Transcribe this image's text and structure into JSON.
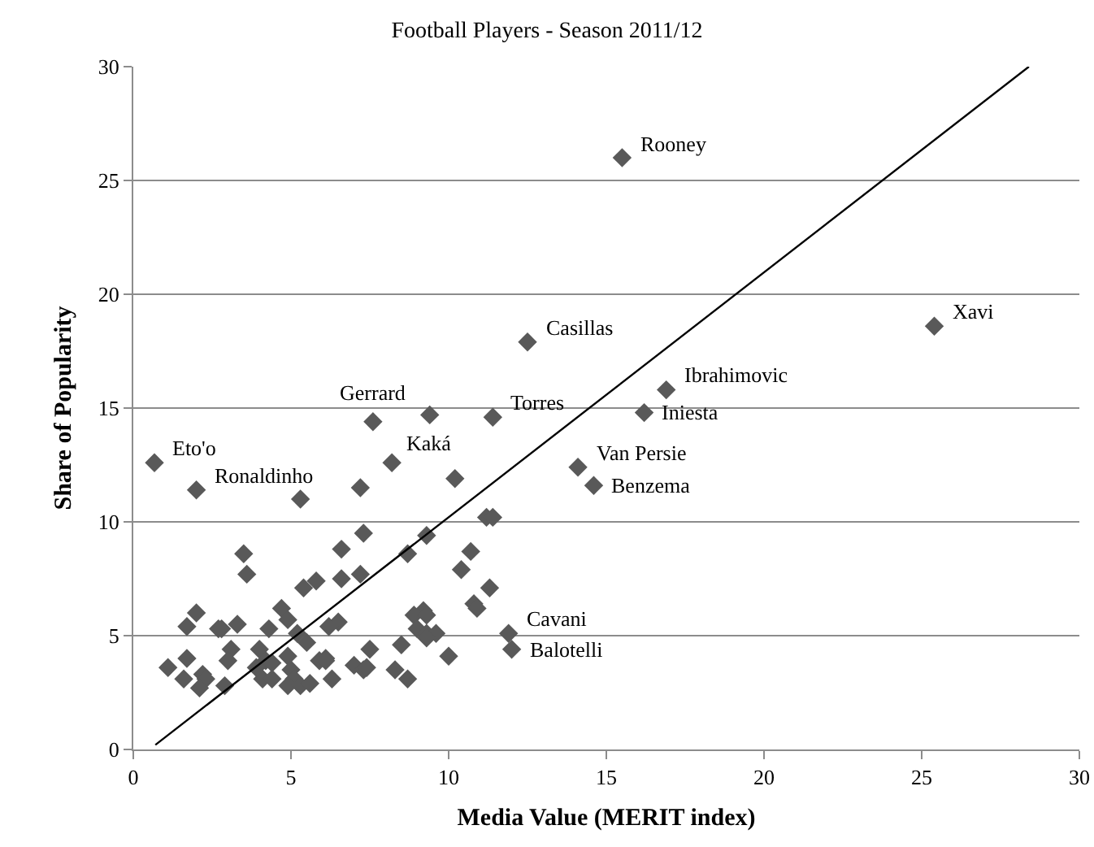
{
  "chart_data": {
    "type": "scatter",
    "title": "Football Players - Season 2011/12",
    "xlabel": "Media Value (MERIT index)",
    "ylabel": "Share of Popularity",
    "xlim": [
      0,
      30
    ],
    "ylim": [
      0,
      30
    ],
    "xticks": [
      0,
      5,
      10,
      15,
      20,
      25,
      30
    ],
    "yticks": [
      0,
      5,
      10,
      15,
      20,
      25,
      30
    ],
    "grid": "y",
    "marker": "diamond",
    "series": [
      {
        "color": "#595959",
        "x": [
          0.67,
          2.0,
          5.3,
          7.6,
          9.4,
          11.4,
          12.5,
          15.5,
          25.4,
          16.9,
          16.2,
          14.1,
          14.6,
          11.9,
          12.0,
          8.2,
          7.2,
          10.2,
          11.2,
          11.4,
          7.3,
          9.3,
          6.6,
          10.7,
          8.7,
          3.5,
          3.6,
          6.6,
          7.2,
          10.4,
          5.8,
          5.4,
          11.3,
          10.8,
          10.9,
          9.2,
          8.9,
          9.3,
          9.0,
          9.3,
          9.6,
          9.3,
          10.0,
          6.1,
          7.5,
          8.5,
          7.0,
          7.3,
          8.3,
          8.7,
          6.3,
          6.5,
          4.7,
          4.9,
          2.0,
          1.7,
          2.7,
          2.8,
          3.3,
          4.3,
          5.2,
          5.5,
          6.2,
          1.1,
          1.7,
          1.6,
          2.2,
          2.3,
          2.1,
          2.9,
          3.1,
          3.0,
          4.0,
          4.2,
          4.4,
          4.1,
          4.4,
          4.9,
          5.0,
          5.1,
          4.9,
          5.3,
          5.6,
          5.9,
          6.1,
          7.4,
          3.9
        ],
        "values": [
          12.6,
          11.4,
          11.0,
          14.4,
          14.7,
          14.6,
          17.9,
          26.0,
          18.6,
          15.8,
          14.8,
          12.4,
          11.6,
          5.1,
          4.4,
          12.6,
          11.5,
          11.9,
          10.2,
          10.2,
          9.5,
          9.4,
          8.8,
          8.7,
          8.6,
          8.6,
          7.7,
          7.5,
          7.7,
          7.9,
          7.4,
          7.1,
          7.1,
          6.4,
          6.2,
          6.1,
          5.9,
          5.9,
          5.3,
          5.1,
          5.1,
          4.9,
          4.1,
          4.0,
          4.4,
          4.6,
          3.7,
          3.5,
          3.5,
          3.1,
          3.1,
          5.6,
          6.2,
          5.7,
          6.0,
          5.4,
          5.3,
          5.3,
          5.5,
          5.3,
          5.1,
          4.7,
          5.4,
          3.6,
          4.0,
          3.1,
          3.3,
          3.1,
          2.7,
          2.8,
          4.4,
          3.9,
          4.4,
          3.9,
          3.8,
          3.1,
          3.1,
          4.1,
          3.5,
          3.1,
          2.8,
          2.8,
          2.9,
          3.9,
          3.9,
          3.6,
          3.6
        ]
      },
      {
        "type": "line",
        "color": "#000000",
        "line_style": "solid",
        "marker": "none",
        "x": [
          0.7,
          28.4
        ],
        "values": [
          0.2,
          30
        ]
      }
    ],
    "annotations": [
      {
        "text": "Eto'o",
        "x": 0.67,
        "y": 12.6
      },
      {
        "text": "Ronaldinho",
        "x": 2.0,
        "y": 11.4
      },
      {
        "text": "Gerrard",
        "x": 7.6,
        "y": 14.4
      },
      {
        "text": "Kaká",
        "x": 9.4,
        "y": 14.7
      },
      {
        "text": "Torres",
        "x": 11.4,
        "y": 14.6
      },
      {
        "text": "Casillas",
        "x": 12.5,
        "y": 17.9
      },
      {
        "text": "Rooney",
        "x": 15.5,
        "y": 26.0
      },
      {
        "text": "Xavi",
        "x": 25.4,
        "y": 18.6
      },
      {
        "text": "Ibrahimovic",
        "x": 16.9,
        "y": 15.8
      },
      {
        "text": "Iniesta",
        "x": 16.2,
        "y": 14.8
      },
      {
        "text": "Van Persie",
        "x": 14.1,
        "y": 12.4
      },
      {
        "text": "Benzema",
        "x": 14.6,
        "y": 11.6
      },
      {
        "text": "Cavani",
        "x": 11.9,
        "y": 5.1
      },
      {
        "text": "Balotelli",
        "x": 12.0,
        "y": 4.4
      }
    ]
  }
}
